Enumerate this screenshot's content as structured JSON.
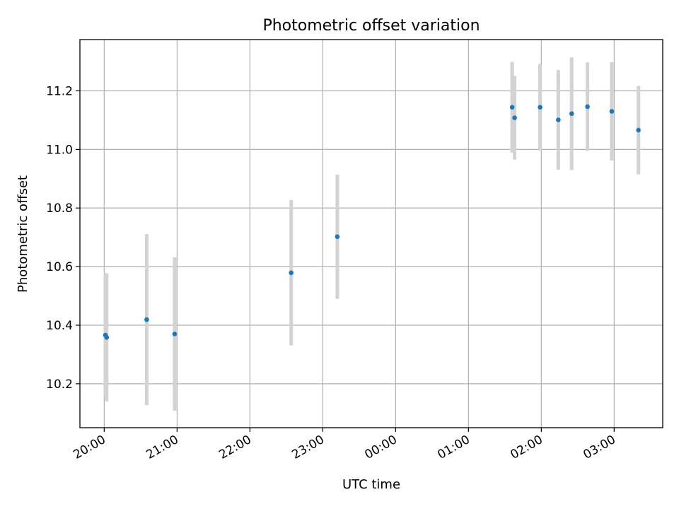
{
  "chart_data": {
    "type": "scatter",
    "title": "Photometric offset variation",
    "xlabel": "UTC time",
    "ylabel": "Photometric offset",
    "x_is_time": true,
    "x_ticks": [
      "20:00",
      "21:00",
      "22:00",
      "23:00",
      "00:00",
      "01:00",
      "02:00",
      "03:00"
    ],
    "y_ticks": [
      "10.2",
      "10.4",
      "10.6",
      "10.8",
      "11.0",
      "11.2"
    ],
    "xlim": [
      "19:40",
      "03:40"
    ],
    "ylim": [
      10.05,
      11.375
    ],
    "grid": true,
    "marker_color": "#1f77b4",
    "errorbar_color": "#d3d3d3",
    "points": [
      {
        "x": "20:01",
        "y": 10.366,
        "err": 0.212
      },
      {
        "x": "20:02",
        "y": 10.358,
        "err": 0.218
      },
      {
        "x": "20:35",
        "y": 10.419,
        "err": 0.292
      },
      {
        "x": "20:58",
        "y": 10.37,
        "err": 0.262
      },
      {
        "x": "22:34",
        "y": 10.579,
        "err": 0.248
      },
      {
        "x": "23:12",
        "y": 10.702,
        "err": 0.212
      },
      {
        "x": "01:36",
        "y": 11.144,
        "err": 0.155
      },
      {
        "x": "01:38",
        "y": 11.108,
        "err": 0.143
      },
      {
        "x": "01:59",
        "y": 11.144,
        "err": 0.148
      },
      {
        "x": "02:14",
        "y": 11.101,
        "err": 0.17
      },
      {
        "x": "02:25",
        "y": 11.122,
        "err": 0.192
      },
      {
        "x": "02:38",
        "y": 11.146,
        "err": 0.151
      },
      {
        "x": "02:58",
        "y": 11.13,
        "err": 0.168
      },
      {
        "x": "03:20",
        "y": 11.066,
        "err": 0.151
      }
    ]
  }
}
